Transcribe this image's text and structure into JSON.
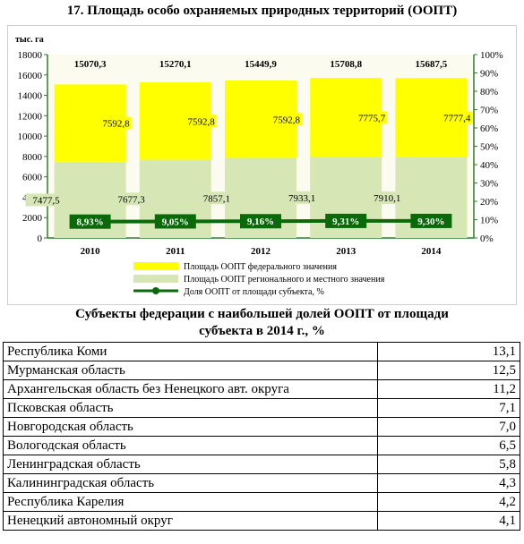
{
  "title": "17. Площадь особо охраняемых природных территорий (ООПТ)",
  "chart_data": {
    "type": "bar+line",
    "stacked": true,
    "y_unit": "тыс. га",
    "ylim": [
      0,
      18000
    ],
    "y_ticks": [
      "0",
      "2000",
      "4000",
      "6000",
      "8000",
      "10000",
      "12000",
      "14000",
      "16000",
      "18000"
    ],
    "y2lim": [
      0,
      100
    ],
    "y2_ticks": [
      "0%",
      "10%",
      "20%",
      "30%",
      "40%",
      "50%",
      "60%",
      "70%",
      "80%",
      "90%",
      "100%"
    ],
    "categories": [
      "2010",
      "2011",
      "2012",
      "2013",
      "2014"
    ],
    "totals": [
      15070.3,
      15270.1,
      15449.9,
      15708.8,
      15687.5
    ],
    "total_labels": [
      "15070,3",
      "15270,1",
      "15449,9",
      "15708,8",
      "15687,5"
    ],
    "series": [
      {
        "name": "Площадь ООПТ федерального значения",
        "color": "#ffff00",
        "values": [
          7592.8,
          7592.8,
          7592.8,
          7775.7,
          7777.4
        ],
        "labels": [
          "7592,8",
          "7592,8",
          "7592,8",
          "7775,7",
          "7777,4"
        ]
      },
      {
        "name": "Площадь ООПТ регионального и местного значения",
        "color": "#d6e6b4",
        "values": [
          7477.5,
          7677.3,
          7857.1,
          7933.1,
          7910.1
        ],
        "labels": [
          "7477,5",
          "7677,3",
          "7857,1",
          "7933,1",
          "7910,1"
        ]
      },
      {
        "name": "Доля ООПТ от площади субъекта, %",
        "color": "#0a6a0a",
        "axis": "secondary",
        "values": [
          8.93,
          9.05,
          9.16,
          9.31,
          9.3
        ],
        "labels": [
          "8,93%",
          "9,05%",
          "9,16%",
          "9,31%",
          "9,30%"
        ]
      }
    ],
    "grid": false,
    "legend_position": "bottom"
  },
  "table": {
    "heading": [
      "Субъекты федерации с наибольшей долей ООПТ от площади",
      "субъекта в 2014 г., %"
    ],
    "rows": [
      {
        "name": "Республика Коми",
        "value": "13,1"
      },
      {
        "name": "Мурманская область",
        "value": "12,5"
      },
      {
        "name": "Архангельская область без Ненецкого авт. округа",
        "value": "11,2"
      },
      {
        "name": "Псковская область",
        "value": "7,1"
      },
      {
        "name": "Новгородская область",
        "value": "7,0"
      },
      {
        "name": "Вологодская область",
        "value": "6,5"
      },
      {
        "name": "Ленинградская область",
        "value": "5,8"
      },
      {
        "name": "Калининградская область",
        "value": "4,3"
      },
      {
        "name": "Республика Карелия",
        "value": "4,2"
      },
      {
        "name": "Ненецкий автономный округ",
        "value": "4,1"
      }
    ]
  }
}
